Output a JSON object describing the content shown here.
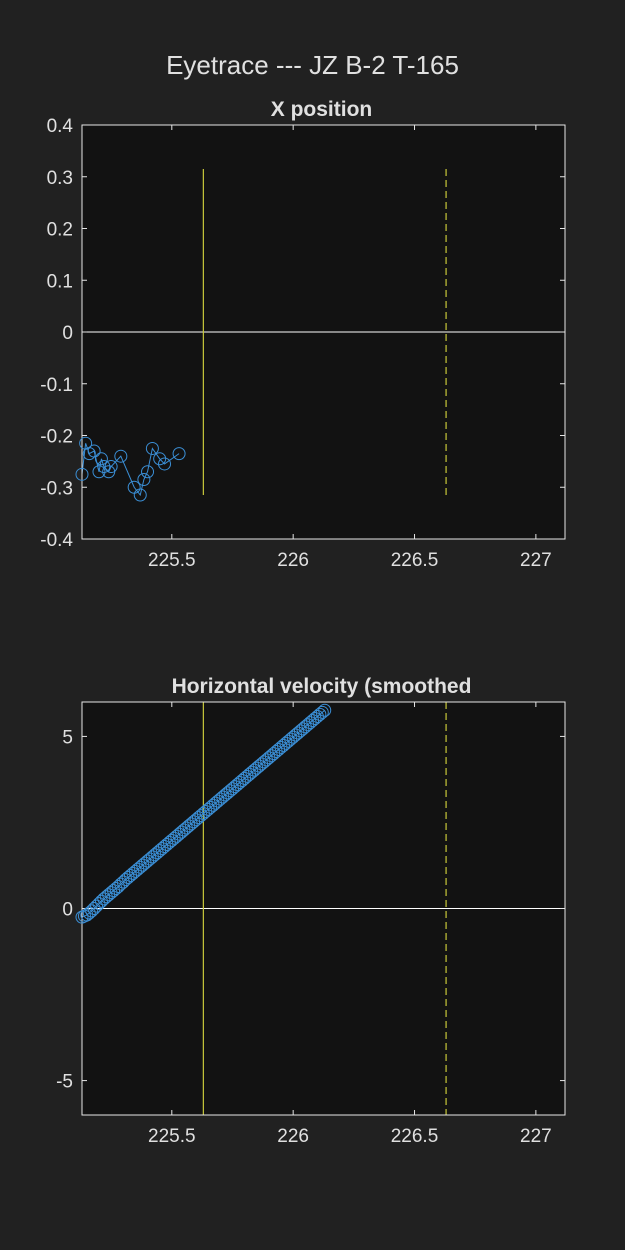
{
  "figure_title": "Eyetrace --- JZ B-2 T-165",
  "colors": {
    "background": "#212121",
    "axes_face": "#121212",
    "axes_edge": "#e6e6e6",
    "text": "#e0e0e0",
    "marker": "#3b8fd6",
    "event_line": "#c8c83a",
    "zero_line": "#ffffff"
  },
  "chart_data": [
    {
      "type": "scatter",
      "title": "X position",
      "xlim": [
        225.13,
        227.12
      ],
      "ylim": [
        -0.4,
        0.4
      ],
      "xticks": [
        225.5,
        226,
        226.5,
        227
      ],
      "xtick_labels": [
        "225.5",
        "226",
        "226.5",
        "227"
      ],
      "yticks": [
        -0.4,
        -0.3,
        -0.2,
        -0.1,
        0,
        0.1,
        0.2,
        0.3,
        0.4
      ],
      "ytick_labels": [
        "-0.4",
        "-0.3",
        "-0.2",
        "-0.1",
        "0",
        "0.1",
        "0.2",
        "0.3",
        "0.4"
      ],
      "zero_line": 0,
      "event_lines": [
        {
          "x": 225.63,
          "style": "solid",
          "y_range": [
            -0.315,
            0.315
          ]
        },
        {
          "x": 226.63,
          "style": "dashed",
          "y_range": [
            -0.315,
            0.315
          ]
        }
      ],
      "series": [
        {
          "x": [
            225.13,
            225.145,
            225.16,
            225.18,
            225.2,
            225.21,
            225.22,
            225.24,
            225.25,
            225.29,
            225.345,
            225.37,
            225.385,
            225.4,
            225.42,
            225.45,
            225.47,
            225.53
          ],
          "y": [
            -0.275,
            -0.215,
            -0.235,
            -0.23,
            -0.27,
            -0.245,
            -0.26,
            -0.27,
            -0.26,
            -0.24,
            -0.3,
            -0.315,
            -0.285,
            -0.27,
            -0.225,
            -0.245,
            -0.255,
            -0.235
          ],
          "connected": true
        }
      ]
    },
    {
      "type": "line",
      "title": "Horizontal velocity (smoothed",
      "xlim": [
        225.13,
        227.12
      ],
      "ylim": [
        -6,
        6
      ],
      "xticks": [
        225.5,
        226,
        226.5,
        227
      ],
      "xtick_labels": [
        "225.5",
        "226",
        "226.5",
        "227"
      ],
      "yticks": [
        -5,
        0,
        5
      ],
      "ytick_labels": [
        "-5",
        "0",
        "5"
      ],
      "zero_line": 0,
      "event_lines": [
        {
          "x": 225.63,
          "style": "solid",
          "y_range": [
            -6,
            6
          ]
        },
        {
          "x": 226.63,
          "style": "dashed",
          "y_range": [
            -6,
            6
          ]
        }
      ],
      "series": [
        {
          "x_start": 225.13,
          "x_step": 0.01,
          "count": 101,
          "y": [
            -0.25,
            -0.22,
            -0.19,
            -0.13,
            -0.07,
            0.0,
            0.07,
            0.14,
            0.21,
            0.28,
            0.34,
            0.4,
            0.46,
            0.52,
            0.58,
            0.64,
            0.71,
            0.77,
            0.84,
            0.9,
            0.96,
            1.02,
            1.08,
            1.14,
            1.2,
            1.26,
            1.32,
            1.38,
            1.44,
            1.5,
            1.56,
            1.62,
            1.68,
            1.74,
            1.8,
            1.86,
            1.92,
            1.98,
            2.04,
            2.1,
            2.16,
            2.22,
            2.28,
            2.34,
            2.4,
            2.46,
            2.52,
            2.58,
            2.64,
            2.7,
            2.76,
            2.82,
            2.88,
            2.94,
            3.0,
            3.06,
            3.12,
            3.18,
            3.24,
            3.3,
            3.36,
            3.42,
            3.48,
            3.54,
            3.6,
            3.66,
            3.72,
            3.78,
            3.84,
            3.9,
            3.96,
            4.02,
            4.08,
            4.14,
            4.2,
            4.26,
            4.32,
            4.38,
            4.44,
            4.5,
            4.56,
            4.62,
            4.68,
            4.74,
            4.8,
            4.86,
            4.92,
            4.98,
            5.04,
            5.1,
            5.16,
            5.22,
            5.28,
            5.34,
            5.4,
            5.46,
            5.52,
            5.58,
            5.64,
            5.7,
            5.76
          ]
        }
      ]
    }
  ]
}
